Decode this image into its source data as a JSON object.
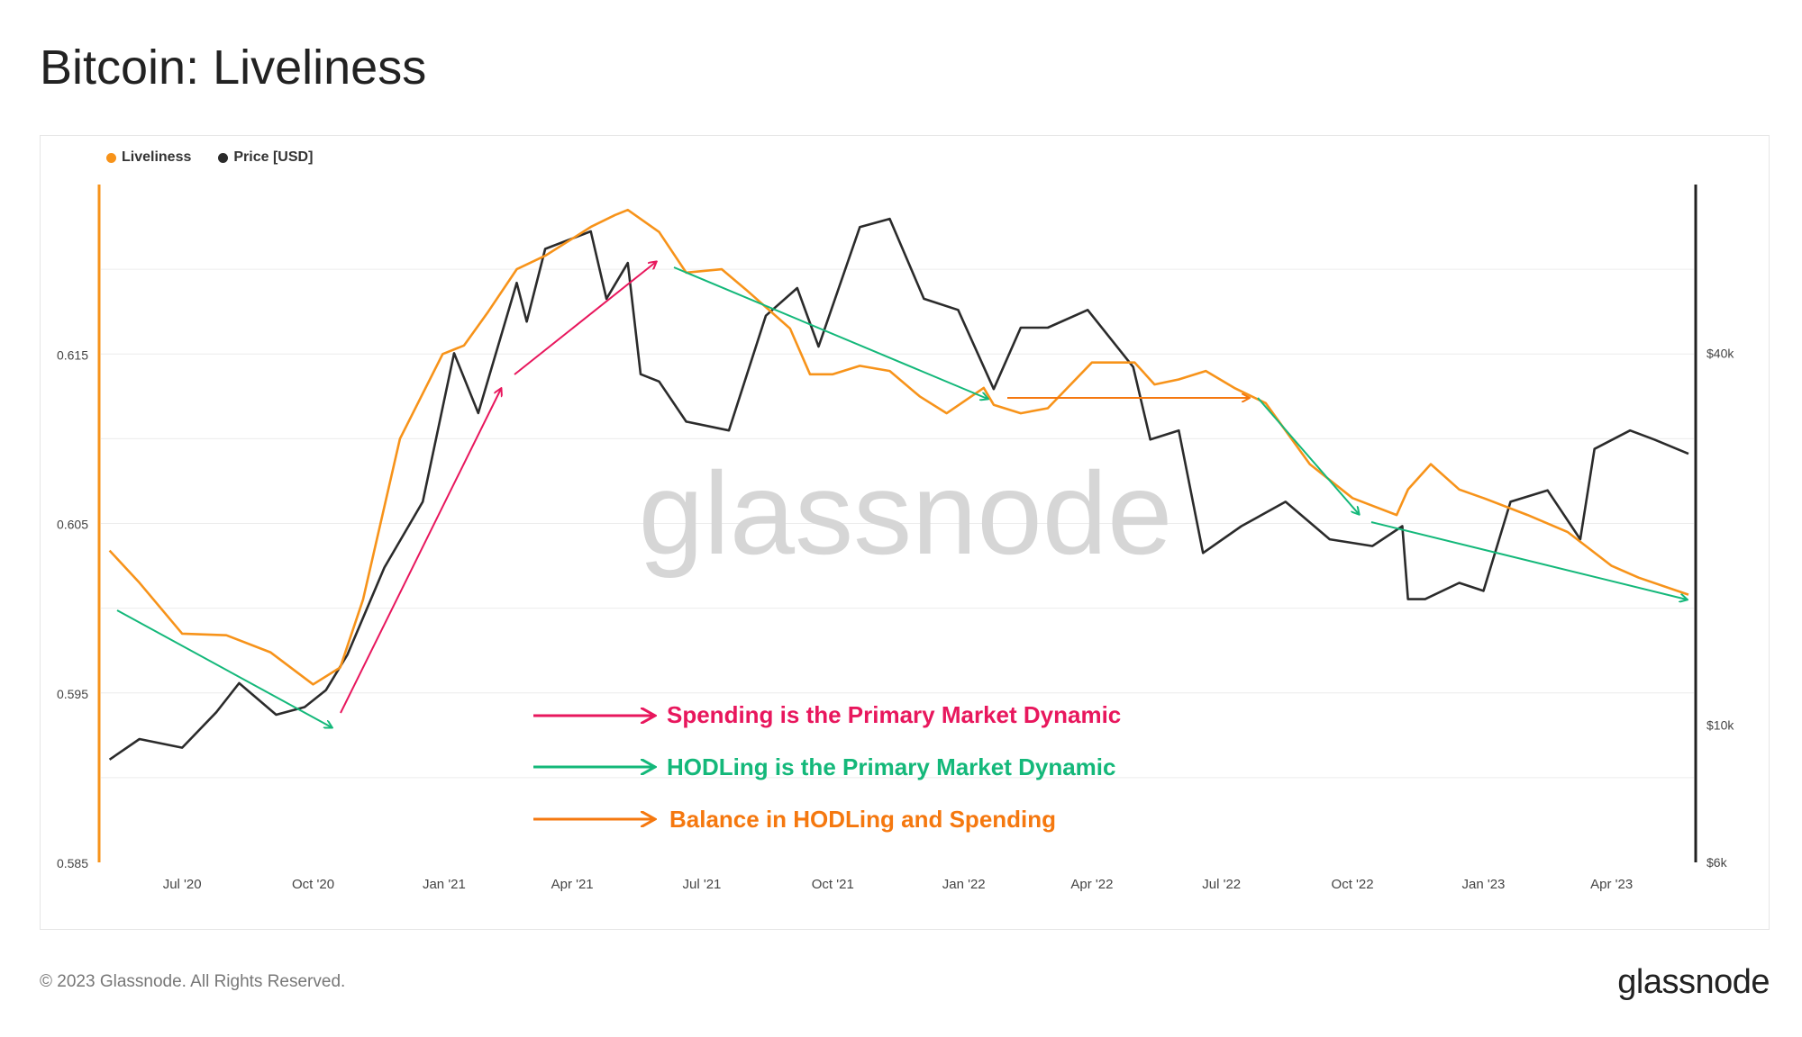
{
  "header": {
    "title": "Bitcoin: Liveliness"
  },
  "footer": {
    "copyright": "© 2023 Glassnode. All Rights Reserved.",
    "brand": "glassnode"
  },
  "watermark": "glassnode",
  "colors": {
    "liveliness": "#f7931a",
    "price": "#2b2b2b",
    "spending": "#e8175d",
    "hodling": "#14b87a",
    "balance": "#f5780f",
    "grid": "#ececec"
  },
  "annotations": [
    {
      "key": "spending",
      "label": "Spending is the Primary Market Dynamic"
    },
    {
      "key": "hodling",
      "label": "HODLing is the Primary Market Dynamic"
    },
    {
      "key": "balance",
      "label": "Balance in HODLing and Spending"
    }
  ],
  "chart_data": {
    "type": "line",
    "x_ticks": [
      "Jul '20",
      "Oct '20",
      "Jan '21",
      "Apr '21",
      "Jul '21",
      "Oct '21",
      "Jan '22",
      "Apr '22",
      "Jul '22",
      "Oct '22",
      "Jan '23",
      "Apr '23"
    ],
    "x_range": [
      "2020-05-10",
      "2023-05-25"
    ],
    "y_left": {
      "ticks": [
        "0.585",
        "0.595",
        "0.605",
        "0.615"
      ],
      "range": [
        0.585,
        0.625
      ]
    },
    "y_right": {
      "ticks": [
        "$6k",
        "$10k",
        "$40k"
      ],
      "scale": "log",
      "range": [
        6000,
        75000
      ]
    },
    "legend": {
      "placement": "top-left",
      "entries": [
        "Liveliness",
        "Price [USD]"
      ]
    },
    "series": [
      {
        "name": "Liveliness",
        "axis": "left",
        "x": [
          "2020-05-11",
          "2020-06-01",
          "2020-07-01",
          "2020-08-01",
          "2020-09-01",
          "2020-10-01",
          "2020-10-20",
          "2020-11-05",
          "2020-12-01",
          "2020-12-31",
          "2021-01-15",
          "2021-02-01",
          "2021-02-21",
          "2021-03-13",
          "2021-04-01",
          "2021-04-14",
          "2021-05-01",
          "2021-05-10",
          "2021-06-01",
          "2021-06-20",
          "2021-07-15",
          "2021-08-01",
          "2021-09-01",
          "2021-09-15",
          "2021-10-01",
          "2021-10-20",
          "2021-11-10",
          "2021-12-01",
          "2021-12-20",
          "2022-01-15",
          "2022-01-22",
          "2022-02-10",
          "2022-03-01",
          "2022-04-01",
          "2022-05-01",
          "2022-05-15",
          "2022-06-01",
          "2022-06-20",
          "2022-07-10",
          "2022-08-01",
          "2022-09-01",
          "2022-10-01",
          "2022-11-01",
          "2022-11-09",
          "2022-11-25",
          "2022-12-15",
          "2023-01-01",
          "2023-02-01",
          "2023-03-01",
          "2023-04-01",
          "2023-04-20",
          "2023-05-25"
        ],
        "y": [
          0.6034,
          0.6015,
          0.5985,
          0.5984,
          0.5974,
          0.5955,
          0.5965,
          0.6005,
          0.61,
          0.615,
          0.6155,
          0.6175,
          0.62,
          0.6208,
          0.6218,
          0.6225,
          0.6232,
          0.6235,
          0.6222,
          0.6198,
          0.62,
          0.6188,
          0.6165,
          0.6138,
          0.6138,
          0.6143,
          0.614,
          0.6125,
          0.6115,
          0.613,
          0.612,
          0.6115,
          0.6118,
          0.6145,
          0.6145,
          0.6132,
          0.6135,
          0.614,
          0.613,
          0.6121,
          0.6085,
          0.6065,
          0.6055,
          0.607,
          0.6085,
          0.607,
          0.6065,
          0.6055,
          0.6045,
          0.6025,
          0.6018,
          0.6008
        ]
      },
      {
        "name": "Price [USD]",
        "axis": "right",
        "x": [
          "2020-05-11",
          "2020-06-01",
          "2020-07-01",
          "2020-07-25",
          "2020-08-10",
          "2020-09-05",
          "2020-09-25",
          "2020-10-10",
          "2020-10-25",
          "2020-11-20",
          "2020-12-17",
          "2021-01-08",
          "2021-01-25",
          "2021-02-21",
          "2021-02-28",
          "2021-03-13",
          "2021-04-14",
          "2021-04-25",
          "2021-05-10",
          "2021-05-19",
          "2021-06-01",
          "2021-06-20",
          "2021-07-20",
          "2021-08-15",
          "2021-09-06",
          "2021-09-21",
          "2021-10-20",
          "2021-11-10",
          "2021-12-04",
          "2021-12-28",
          "2022-01-22",
          "2022-02-10",
          "2022-03-01",
          "2022-03-29",
          "2022-04-30",
          "2022-05-12",
          "2022-06-01",
          "2022-06-18",
          "2022-07-15",
          "2022-08-15",
          "2022-09-15",
          "2022-10-15",
          "2022-11-05",
          "2022-11-09",
          "2022-11-21",
          "2022-12-15",
          "2023-01-01",
          "2023-01-20",
          "2023-02-15",
          "2023-03-10",
          "2023-03-20",
          "2023-04-14",
          "2023-05-01",
          "2023-05-25"
        ],
        "y": [
          8800,
          9500,
          9200,
          10500,
          11700,
          10400,
          10700,
          11400,
          13000,
          18000,
          23000,
          40000,
          32000,
          52000,
          45000,
          59000,
          63000,
          49000,
          56000,
          37000,
          36000,
          31000,
          30000,
          46000,
          51000,
          41000,
          64000,
          66000,
          49000,
          47000,
          35000,
          44000,
          44000,
          47000,
          38000,
          29000,
          30000,
          19000,
          21000,
          23000,
          20000,
          19500,
          21000,
          16000,
          16000,
          17000,
          16500,
          23000,
          24000,
          20000,
          28000,
          30000,
          29000,
          27500
        ]
      }
    ]
  }
}
